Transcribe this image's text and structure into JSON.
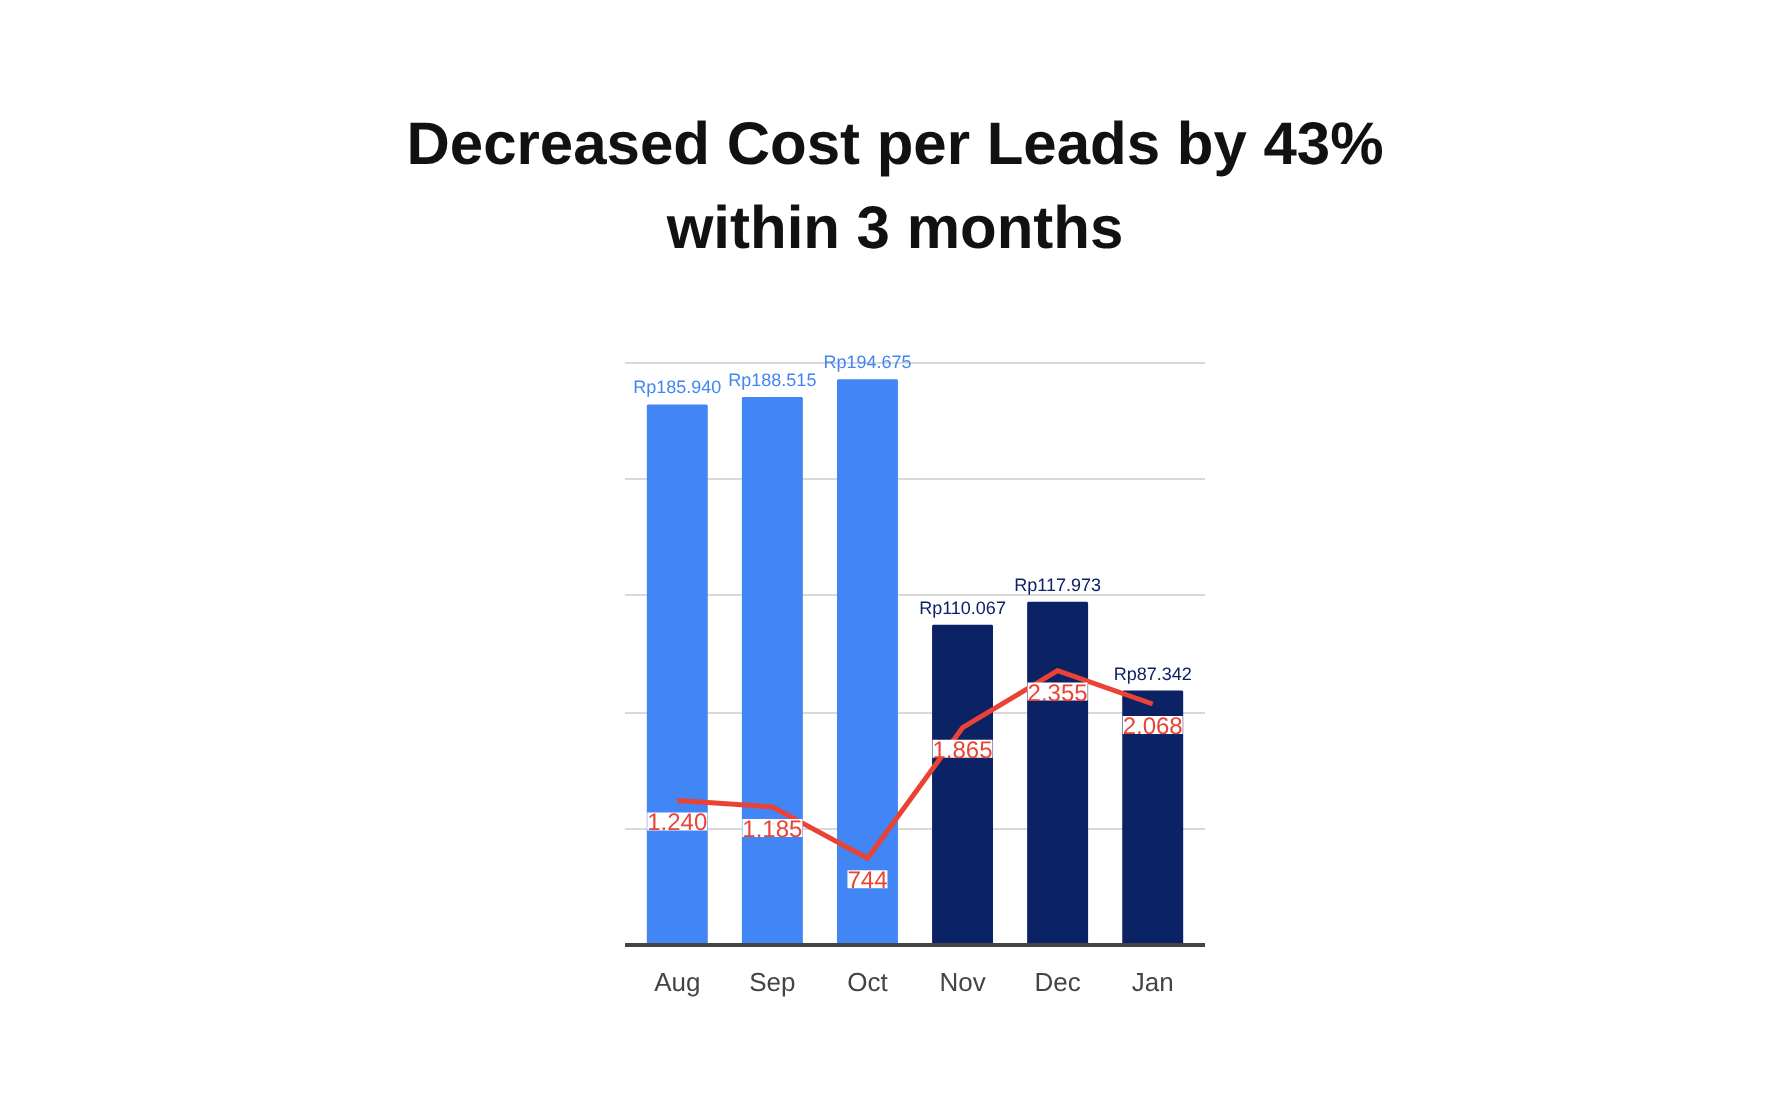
{
  "chart_data": {
    "type": "bar",
    "title": "Decreased Cost per Leads by 43%",
    "subtitle": "within 3 months",
    "categories": [
      "Aug",
      "Sep",
      "Oct",
      "Nov",
      "Dec",
      "Jan"
    ],
    "series": [
      {
        "colors": [
          "#4285f4",
          "#4285f4",
          "#4285f4",
          "#0b2265",
          "#0b2265",
          "#0b2265"
        ],
        "values": [
          185940,
          188515,
          194675,
          110067,
          117973,
          87342
        ],
        "value_labels": [
          "Rp185.940",
          "Rp188.515",
          "Rp194.675",
          "Rp110.067",
          "Rp117.973",
          "Rp87.342"
        ]
      },
      {
        "type": "line",
        "axis": "y2",
        "color": "#ea4335",
        "values": [
          1240,
          1185,
          744,
          1865,
          2355,
          2068
        ],
        "value_labels": [
          "1.240",
          "1.185",
          "744",
          "1.865",
          "2.355",
          "2.068"
        ]
      }
    ],
    "grid": "y",
    "tick_labels": "x",
    "line_style": "solid"
  }
}
